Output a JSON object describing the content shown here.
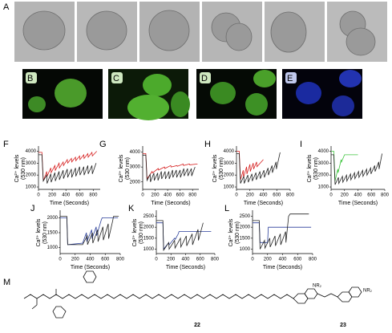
{
  "labels": {
    "A": "A",
    "B": "B",
    "C": "C",
    "D": "D",
    "E": "E",
    "M": "M"
  },
  "structure": {
    "compounds": [
      "22",
      "23"
    ],
    "groups": [
      "NR₂",
      "NR₂"
    ]
  },
  "chart_data": [
    {
      "type": "line",
      "panel": "F",
      "x_label": "Time (Seconds)",
      "y_label": [
        "Ca²⁺ levels",
        "(530 nm)"
      ],
      "xlim": [
        0,
        900
      ],
      "ylim": [
        800,
        4300
      ],
      "xticks": [
        0,
        200,
        400,
        600,
        800
      ],
      "yticks": [
        1000,
        2000,
        3000,
        4000
      ],
      "series": [
        {
          "color": "#d62020",
          "x": [
            0,
            50,
            70,
            120,
            125,
            180,
            185,
            240,
            245,
            300,
            305,
            360,
            365,
            420,
            425,
            480,
            485,
            540,
            545,
            600,
            605,
            660,
            665,
            720,
            725,
            780,
            785,
            850
          ],
          "values": [
            3900,
            3900,
            1500,
            2300,
            1900,
            2600,
            2200,
            2800,
            2400,
            3000,
            2600,
            3100,
            2800,
            3300,
            3000,
            3400,
            3100,
            3500,
            3200,
            3600,
            3300,
            3700,
            3400,
            3800,
            3500,
            3900,
            3600,
            4000
          ]
        },
        {
          "color": "#222222",
          "x": [
            0,
            50,
            70,
            120,
            125,
            180,
            185,
            240,
            245,
            300,
            305,
            360,
            365,
            420,
            425,
            480,
            485,
            540,
            545,
            600,
            605,
            660,
            665,
            720,
            725,
            780,
            785,
            840
          ],
          "values": [
            3700,
            3700,
            1500,
            2000,
            1300,
            2100,
            1400,
            2200,
            1500,
            2300,
            1600,
            2400,
            1700,
            2500,
            1800,
            2500,
            1800,
            2600,
            1900,
            2700,
            2000,
            2700,
            2000,
            2800,
            2100,
            2800,
            2100,
            3000
          ]
        }
      ]
    },
    {
      "type": "line",
      "panel": "G",
      "x_label": "Time (Seconds)",
      "y_label": [
        "Ca²⁺ levels",
        "(530 nm)"
      ],
      "xlim": [
        0,
        900
      ],
      "ylim": [
        1500,
        4300
      ],
      "xticks": [
        0,
        200,
        400,
        600,
        800
      ],
      "yticks": [
        2000,
        3000,
        4000
      ],
      "series": [
        {
          "color": "#d62020",
          "x": [
            0,
            50,
            70,
            150,
            155,
            250,
            255,
            350,
            355,
            450,
            455,
            550,
            555,
            650,
            655,
            750,
            755,
            880
          ],
          "values": [
            3900,
            3900,
            2200,
            2700,
            2600,
            2900,
            2800,
            3000,
            2900,
            3100,
            3000,
            3100,
            3050,
            3200,
            3100,
            3200,
            3150,
            3200
          ]
        },
        {
          "color": "#222222",
          "x": [
            0,
            50,
            70,
            120,
            125,
            180,
            185,
            240,
            245,
            300,
            305,
            360,
            365,
            420,
            425,
            480,
            485,
            540,
            545,
            600,
            605,
            660,
            665,
            720,
            725,
            780,
            785,
            840
          ],
          "values": [
            3800,
            3800,
            2100,
            2500,
            2000,
            2600,
            2100,
            2600,
            2100,
            2700,
            2200,
            2700,
            2200,
            2700,
            2200,
            2800,
            2300,
            2800,
            2300,
            2800,
            2300,
            2900,
            2400,
            2900,
            2400,
            2900,
            2400,
            3000
          ]
        }
      ]
    },
    {
      "type": "line",
      "panel": "H",
      "x_label": "Time (Seconds)",
      "y_label": [
        "Ca²⁺ levels",
        "(530 nm)"
      ],
      "xlim": [
        0,
        800
      ],
      "ylim": [
        800,
        4300
      ],
      "xticks": [
        0,
        200,
        400,
        600,
        800
      ],
      "yticks": [
        1000,
        2000,
        3000,
        4000
      ],
      "series": [
        {
          "color": "#d62020",
          "x": [
            0,
            40,
            60,
            100,
            105,
            150,
            155,
            200,
            205,
            250,
            255,
            300,
            305,
            400
          ],
          "values": [
            4000,
            4000,
            1600,
            2400,
            1800,
            2700,
            2100,
            2900,
            2300,
            3000,
            2500,
            3100,
            2700,
            3300
          ]
        },
        {
          "color": "#222222",
          "x": [
            0,
            40,
            60,
            110,
            115,
            170,
            175,
            230,
            235,
            290,
            295,
            350,
            355,
            410,
            415,
            470,
            475,
            530,
            535,
            590,
            595,
            650
          ],
          "values": [
            3800,
            3800,
            1300,
            1900,
            1300,
            2000,
            1400,
            2100,
            1500,
            2200,
            1600,
            2300,
            1700,
            2400,
            1800,
            2600,
            2000,
            2800,
            2200,
            3100,
            2500,
            3900
          ]
        }
      ]
    },
    {
      "type": "line",
      "panel": "I",
      "x_label": "Time (Seconds)",
      "y_label": [
        "Ca²⁺ levels",
        "(530 nm)"
      ],
      "xlim": [
        0,
        800
      ],
      "ylim": [
        800,
        4300
      ],
      "xticks": [
        0,
        200,
        400,
        600,
        800
      ],
      "yticks": [
        1000,
        2000,
        3000,
        4000
      ],
      "series": [
        {
          "color": "#3cc43c",
          "x": [
            0,
            40,
            60,
            100,
            105,
            150,
            155,
            200,
            400
          ],
          "values": [
            4000,
            4000,
            1500,
            2500,
            2200,
            3300,
            3100,
            3700,
            3700
          ]
        },
        {
          "color": "#222222",
          "x": [
            0,
            40,
            60,
            110,
            115,
            170,
            175,
            230,
            235,
            290,
            295,
            350,
            355,
            410,
            415,
            470,
            475,
            530,
            535,
            590,
            595,
            650,
            655,
            710,
            715,
            760
          ],
          "values": [
            3700,
            3700,
            1200,
            1800,
            1300,
            1900,
            1400,
            2000,
            1500,
            2100,
            1600,
            2200,
            1700,
            2300,
            1800,
            2400,
            1900,
            2500,
            2000,
            2600,
            2100,
            2800,
            2300,
            3100,
            2500,
            3800
          ]
        }
      ]
    },
    {
      "type": "line",
      "panel": "J",
      "x_label": "Time (Seconds)",
      "y_label": [
        "Ca²⁺ levels",
        "(530 nm)"
      ],
      "xlim": [
        0,
        800
      ],
      "ylim": [
        800,
        2200
      ],
      "xticks": [
        0,
        200,
        400,
        600,
        800
      ],
      "yticks": [
        1000,
        1500,
        2000
      ],
      "series": [
        {
          "color": "#2a3f9a",
          "x": [
            0,
            90,
            100,
            300,
            350,
            355,
            420,
            425,
            480,
            485,
            550,
            560,
            770
          ],
          "values": [
            2000,
            2000,
            1100,
            1150,
            1500,
            1200,
            1600,
            1300,
            1700,
            1400,
            1950,
            2000,
            2000
          ]
        },
        {
          "color": "#222222",
          "x": [
            0,
            90,
            100,
            300,
            360,
            365,
            430,
            435,
            500,
            505,
            570,
            575,
            640,
            645,
            700,
            710,
            780
          ],
          "values": [
            2050,
            2050,
            1100,
            1100,
            1400,
            1100,
            1500,
            1150,
            1600,
            1200,
            1700,
            1250,
            1800,
            1300,
            1900,
            2050,
            2050
          ]
        }
      ]
    },
    {
      "type": "line",
      "panel": "K",
      "x_label": "Time (Seconds)",
      "y_label": [
        "Ca²⁺ levels",
        "(530 nm)"
      ],
      "xlim": [
        0,
        800
      ],
      "ylim": [
        800,
        2700
      ],
      "xticks": [
        0,
        200,
        400,
        600,
        800
      ],
      "yticks": [
        1000,
        1500,
        2000,
        2500
      ],
      "series": [
        {
          "color": "#2a3f9a",
          "x": [
            0,
            90,
            100,
            170,
            175,
            250,
            260,
            300,
            310,
            750
          ],
          "values": [
            2200,
            2200,
            1000,
            1300,
            1200,
            1500,
            1450,
            1700,
            1800,
            1800
          ]
        },
        {
          "color": "#222222",
          "x": [
            0,
            90,
            100,
            170,
            175,
            250,
            255,
            330,
            335,
            410,
            415,
            490,
            495,
            570,
            575,
            640
          ],
          "values": [
            2300,
            2300,
            950,
            1300,
            1000,
            1400,
            1050,
            1500,
            1100,
            1600,
            1150,
            1700,
            1200,
            1900,
            1400,
            2200
          ]
        }
      ]
    },
    {
      "type": "line",
      "panel": "L",
      "x_label": "Time (Seconds)",
      "y_label": [
        "Ca²⁺ levels",
        "(530 nm)"
      ],
      "xlim": [
        0,
        800
      ],
      "ylim": [
        800,
        2700
      ],
      "xticks": [
        0,
        200,
        400,
        600,
        800
      ],
      "yticks": [
        1000,
        1500,
        2000,
        2500
      ],
      "series": [
        {
          "color": "#2a3f9a",
          "x": [
            0,
            90,
            100,
            200,
            210,
            780
          ],
          "values": [
            2200,
            2200,
            1300,
            1300,
            2000,
            2000
          ]
        },
        {
          "color": "#222222",
          "x": [
            0,
            90,
            100,
            160,
            165,
            230,
            235,
            300,
            305,
            370,
            375,
            440,
            445,
            480,
            500,
            750
          ],
          "values": [
            2300,
            2300,
            1000,
            1400,
            1050,
            1500,
            1100,
            1600,
            1150,
            1700,
            1200,
            1800,
            1300,
            2500,
            2600,
            2600
          ]
        }
      ]
    }
  ]
}
